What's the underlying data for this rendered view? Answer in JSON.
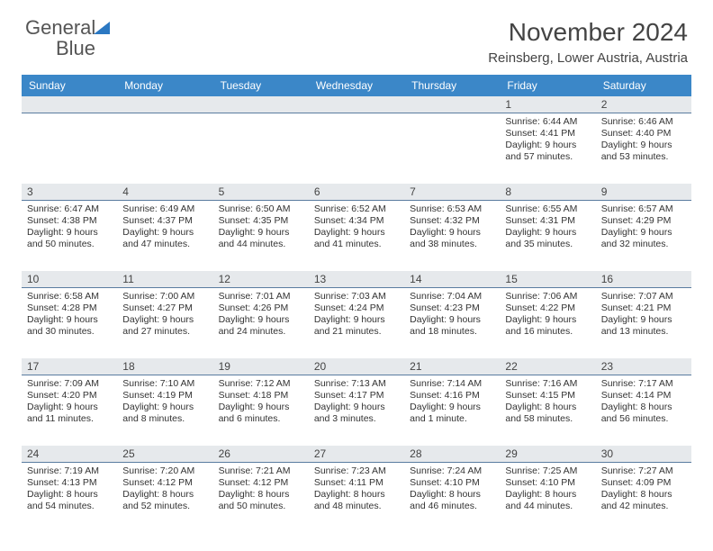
{
  "brand": {
    "word1": "General",
    "word2": "Blue"
  },
  "title": "November 2024",
  "location": "Reinsberg, Lower Austria, Austria",
  "calendar": {
    "header_bg": "#3b87c8",
    "band_bg": "#e6e9ec",
    "day_names": [
      "Sunday",
      "Monday",
      "Tuesday",
      "Wednesday",
      "Thursday",
      "Friday",
      "Saturday"
    ],
    "weeks": [
      [
        null,
        null,
        null,
        null,
        null,
        {
          "n": "1",
          "sr": "Sunrise: 6:44 AM",
          "ss": "Sunset: 4:41 PM",
          "dl1": "Daylight: 9 hours",
          "dl2": "and 57 minutes."
        },
        {
          "n": "2",
          "sr": "Sunrise: 6:46 AM",
          "ss": "Sunset: 4:40 PM",
          "dl1": "Daylight: 9 hours",
          "dl2": "and 53 minutes."
        }
      ],
      [
        {
          "n": "3",
          "sr": "Sunrise: 6:47 AM",
          "ss": "Sunset: 4:38 PM",
          "dl1": "Daylight: 9 hours",
          "dl2": "and 50 minutes."
        },
        {
          "n": "4",
          "sr": "Sunrise: 6:49 AM",
          "ss": "Sunset: 4:37 PM",
          "dl1": "Daylight: 9 hours",
          "dl2": "and 47 minutes."
        },
        {
          "n": "5",
          "sr": "Sunrise: 6:50 AM",
          "ss": "Sunset: 4:35 PM",
          "dl1": "Daylight: 9 hours",
          "dl2": "and 44 minutes."
        },
        {
          "n": "6",
          "sr": "Sunrise: 6:52 AM",
          "ss": "Sunset: 4:34 PM",
          "dl1": "Daylight: 9 hours",
          "dl2": "and 41 minutes."
        },
        {
          "n": "7",
          "sr": "Sunrise: 6:53 AM",
          "ss": "Sunset: 4:32 PM",
          "dl1": "Daylight: 9 hours",
          "dl2": "and 38 minutes."
        },
        {
          "n": "8",
          "sr": "Sunrise: 6:55 AM",
          "ss": "Sunset: 4:31 PM",
          "dl1": "Daylight: 9 hours",
          "dl2": "and 35 minutes."
        },
        {
          "n": "9",
          "sr": "Sunrise: 6:57 AM",
          "ss": "Sunset: 4:29 PM",
          "dl1": "Daylight: 9 hours",
          "dl2": "and 32 minutes."
        }
      ],
      [
        {
          "n": "10",
          "sr": "Sunrise: 6:58 AM",
          "ss": "Sunset: 4:28 PM",
          "dl1": "Daylight: 9 hours",
          "dl2": "and 30 minutes."
        },
        {
          "n": "11",
          "sr": "Sunrise: 7:00 AM",
          "ss": "Sunset: 4:27 PM",
          "dl1": "Daylight: 9 hours",
          "dl2": "and 27 minutes."
        },
        {
          "n": "12",
          "sr": "Sunrise: 7:01 AM",
          "ss": "Sunset: 4:26 PM",
          "dl1": "Daylight: 9 hours",
          "dl2": "and 24 minutes."
        },
        {
          "n": "13",
          "sr": "Sunrise: 7:03 AM",
          "ss": "Sunset: 4:24 PM",
          "dl1": "Daylight: 9 hours",
          "dl2": "and 21 minutes."
        },
        {
          "n": "14",
          "sr": "Sunrise: 7:04 AM",
          "ss": "Sunset: 4:23 PM",
          "dl1": "Daylight: 9 hours",
          "dl2": "and 18 minutes."
        },
        {
          "n": "15",
          "sr": "Sunrise: 7:06 AM",
          "ss": "Sunset: 4:22 PM",
          "dl1": "Daylight: 9 hours",
          "dl2": "and 16 minutes."
        },
        {
          "n": "16",
          "sr": "Sunrise: 7:07 AM",
          "ss": "Sunset: 4:21 PM",
          "dl1": "Daylight: 9 hours",
          "dl2": "and 13 minutes."
        }
      ],
      [
        {
          "n": "17",
          "sr": "Sunrise: 7:09 AM",
          "ss": "Sunset: 4:20 PM",
          "dl1": "Daylight: 9 hours",
          "dl2": "and 11 minutes."
        },
        {
          "n": "18",
          "sr": "Sunrise: 7:10 AM",
          "ss": "Sunset: 4:19 PM",
          "dl1": "Daylight: 9 hours",
          "dl2": "and 8 minutes."
        },
        {
          "n": "19",
          "sr": "Sunrise: 7:12 AM",
          "ss": "Sunset: 4:18 PM",
          "dl1": "Daylight: 9 hours",
          "dl2": "and 6 minutes."
        },
        {
          "n": "20",
          "sr": "Sunrise: 7:13 AM",
          "ss": "Sunset: 4:17 PM",
          "dl1": "Daylight: 9 hours",
          "dl2": "and 3 minutes."
        },
        {
          "n": "21",
          "sr": "Sunrise: 7:14 AM",
          "ss": "Sunset: 4:16 PM",
          "dl1": "Daylight: 9 hours",
          "dl2": "and 1 minute."
        },
        {
          "n": "22",
          "sr": "Sunrise: 7:16 AM",
          "ss": "Sunset: 4:15 PM",
          "dl1": "Daylight: 8 hours",
          "dl2": "and 58 minutes."
        },
        {
          "n": "23",
          "sr": "Sunrise: 7:17 AM",
          "ss": "Sunset: 4:14 PM",
          "dl1": "Daylight: 8 hours",
          "dl2": "and 56 minutes."
        }
      ],
      [
        {
          "n": "24",
          "sr": "Sunrise: 7:19 AM",
          "ss": "Sunset: 4:13 PM",
          "dl1": "Daylight: 8 hours",
          "dl2": "and 54 minutes."
        },
        {
          "n": "25",
          "sr": "Sunrise: 7:20 AM",
          "ss": "Sunset: 4:12 PM",
          "dl1": "Daylight: 8 hours",
          "dl2": "and 52 minutes."
        },
        {
          "n": "26",
          "sr": "Sunrise: 7:21 AM",
          "ss": "Sunset: 4:12 PM",
          "dl1": "Daylight: 8 hours",
          "dl2": "and 50 minutes."
        },
        {
          "n": "27",
          "sr": "Sunrise: 7:23 AM",
          "ss": "Sunset: 4:11 PM",
          "dl1": "Daylight: 8 hours",
          "dl2": "and 48 minutes."
        },
        {
          "n": "28",
          "sr": "Sunrise: 7:24 AM",
          "ss": "Sunset: 4:10 PM",
          "dl1": "Daylight: 8 hours",
          "dl2": "and 46 minutes."
        },
        {
          "n": "29",
          "sr": "Sunrise: 7:25 AM",
          "ss": "Sunset: 4:10 PM",
          "dl1": "Daylight: 8 hours",
          "dl2": "and 44 minutes."
        },
        {
          "n": "30",
          "sr": "Sunrise: 7:27 AM",
          "ss": "Sunset: 4:09 PM",
          "dl1": "Daylight: 8 hours",
          "dl2": "and 42 minutes."
        }
      ]
    ]
  }
}
